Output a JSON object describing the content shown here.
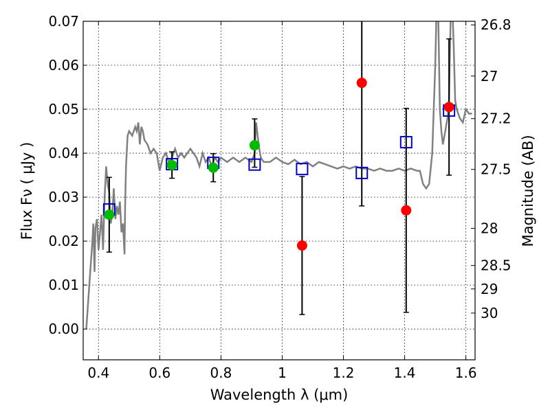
{
  "chart_data": {
    "type": "scatter",
    "xlabel": "Wavelength  λ (μm)",
    "ylabel": "Flux  Fν  ( μJy )",
    "y2label": "Magnitude (AB)",
    "xlim": [
      0.35,
      1.63
    ],
    "ylim": [
      -0.007,
      0.07
    ],
    "grid": true,
    "x_ticks": [
      {
        "value": 0.4,
        "label": "0.4"
      },
      {
        "value": 0.6,
        "label": "0.6"
      },
      {
        "value": 0.8,
        "label": "0.8"
      },
      {
        "value": 1.0,
        "label": "1"
      },
      {
        "value": 1.2,
        "label": "1.2"
      },
      {
        "value": 1.4,
        "label": "1.4"
      },
      {
        "value": 1.6,
        "label": "1.6"
      }
    ],
    "y_ticks": [
      {
        "value": 0.0,
        "label": "0.00"
      },
      {
        "value": 0.01,
        "label": "0.01"
      },
      {
        "value": 0.02,
        "label": "0.02"
      },
      {
        "value": 0.03,
        "label": "0.03"
      },
      {
        "value": 0.04,
        "label": "0.04"
      },
      {
        "value": 0.05,
        "label": "0.05"
      },
      {
        "value": 0.06,
        "label": "0.06"
      },
      {
        "value": 0.07,
        "label": "0.07"
      }
    ],
    "mag_ticks": [
      {
        "value": 26.8,
        "label": "26.8"
      },
      {
        "value": 27.0,
        "label": "27"
      },
      {
        "value": 27.2,
        "label": "27.2"
      },
      {
        "value": 27.5,
        "label": "27.5"
      },
      {
        "value": 28.0,
        "label": "28"
      },
      {
        "value": 28.5,
        "label": "28.5"
      },
      {
        "value": 29.0,
        "label": "29"
      },
      {
        "value": 30.0,
        "label": "30"
      }
    ],
    "colors": {
      "model": "#808080",
      "model_points": "#0000cc",
      "detections": "#00bb00",
      "non_detections": "#ff0000",
      "error_bars": "#000000"
    },
    "model_spectrum": {
      "x": [
        0.36,
        0.37,
        0.38,
        0.383,
        0.387,
        0.39,
        0.395,
        0.4,
        0.405,
        0.41,
        0.415,
        0.42,
        0.425,
        0.43,
        0.435,
        0.44,
        0.445,
        0.45,
        0.455,
        0.46,
        0.465,
        0.47,
        0.475,
        0.48,
        0.485,
        0.487,
        0.49,
        0.495,
        0.5,
        0.51,
        0.52,
        0.525,
        0.53,
        0.535,
        0.54,
        0.545,
        0.55,
        0.56,
        0.57,
        0.58,
        0.59,
        0.6,
        0.61,
        0.62,
        0.63,
        0.64,
        0.65,
        0.66,
        0.67,
        0.68,
        0.69,
        0.7,
        0.71,
        0.72,
        0.73,
        0.74,
        0.75,
        0.76,
        0.77,
        0.78,
        0.79,
        0.8,
        0.82,
        0.84,
        0.86,
        0.88,
        0.9,
        0.91,
        0.915,
        0.92,
        0.925,
        0.93,
        0.94,
        0.96,
        0.98,
        1.0,
        1.02,
        1.04,
        1.06,
        1.08,
        1.1,
        1.12,
        1.14,
        1.16,
        1.18,
        1.2,
        1.22,
        1.24,
        1.26,
        1.28,
        1.3,
        1.32,
        1.34,
        1.36,
        1.38,
        1.4,
        1.42,
        1.44,
        1.45,
        1.46,
        1.47,
        1.48,
        1.49,
        1.5,
        1.505,
        1.51,
        1.515,
        1.52,
        1.525,
        1.53,
        1.535,
        1.54,
        1.545,
        1.55,
        1.555,
        1.56,
        1.565,
        1.57,
        1.575,
        1.58,
        1.59,
        1.6,
        1.61,
        1.62
      ],
      "y": [
        0.0,
        0.01,
        0.02,
        0.024,
        0.013,
        0.023,
        0.025,
        0.018,
        0.022,
        0.026,
        0.018,
        0.03,
        0.037,
        0.033,
        0.031,
        0.024,
        0.026,
        0.032,
        0.025,
        0.028,
        0.026,
        0.029,
        0.022,
        0.024,
        0.017,
        0.028,
        0.037,
        0.044,
        0.045,
        0.044,
        0.046,
        0.045,
        0.047,
        0.042,
        0.046,
        0.045,
        0.043,
        0.042,
        0.04,
        0.041,
        0.04,
        0.036,
        0.039,
        0.04,
        0.038,
        0.039,
        0.041,
        0.039,
        0.04,
        0.039,
        0.04,
        0.041,
        0.04,
        0.039,
        0.037,
        0.04,
        0.038,
        0.039,
        0.037,
        0.039,
        0.038,
        0.039,
        0.038,
        0.039,
        0.038,
        0.039,
        0.038,
        0.04,
        0.047,
        0.044,
        0.041,
        0.039,
        0.038,
        0.038,
        0.039,
        0.038,
        0.0375,
        0.0385,
        0.0375,
        0.038,
        0.037,
        0.038,
        0.0375,
        0.037,
        0.0365,
        0.037,
        0.0365,
        0.037,
        0.0365,
        0.0365,
        0.036,
        0.0365,
        0.036,
        0.036,
        0.0365,
        0.036,
        0.0365,
        0.036,
        0.036,
        0.033,
        0.032,
        0.033,
        0.04,
        0.06,
        0.075,
        0.07,
        0.05,
        0.045,
        0.042,
        0.044,
        0.046,
        0.048,
        0.052,
        0.07,
        0.075,
        0.065,
        0.052,
        0.05,
        0.049,
        0.048,
        0.047,
        0.05,
        0.049,
        0.049
      ]
    },
    "model_points": {
      "x": [
        0.435,
        0.64,
        0.775,
        0.91,
        1.065,
        1.26,
        1.405,
        1.545
      ],
      "y": [
        0.0272,
        0.0375,
        0.0378,
        0.0374,
        0.0364,
        0.0355,
        0.0425,
        0.0497
      ]
    },
    "detections": {
      "x": [
        0.435,
        0.64,
        0.775,
        0.91
      ],
      "y": [
        0.026,
        0.0373,
        0.0367,
        0.0418
      ],
      "err_low": [
        0.0085,
        0.003,
        0.0032,
        0.005
      ],
      "err_high": [
        0.0085,
        0.003,
        0.0032,
        0.006
      ]
    },
    "non_detections": {
      "x": [
        1.065,
        1.26,
        1.405,
        1.545
      ],
      "y": [
        0.019,
        0.056,
        0.027,
        0.0505
      ],
      "err_low": [
        0.0157,
        0.028,
        0.0232,
        0.0155
      ],
      "err_high": [
        0.0157,
        0.028,
        0.0232,
        0.0155
      ]
    }
  }
}
